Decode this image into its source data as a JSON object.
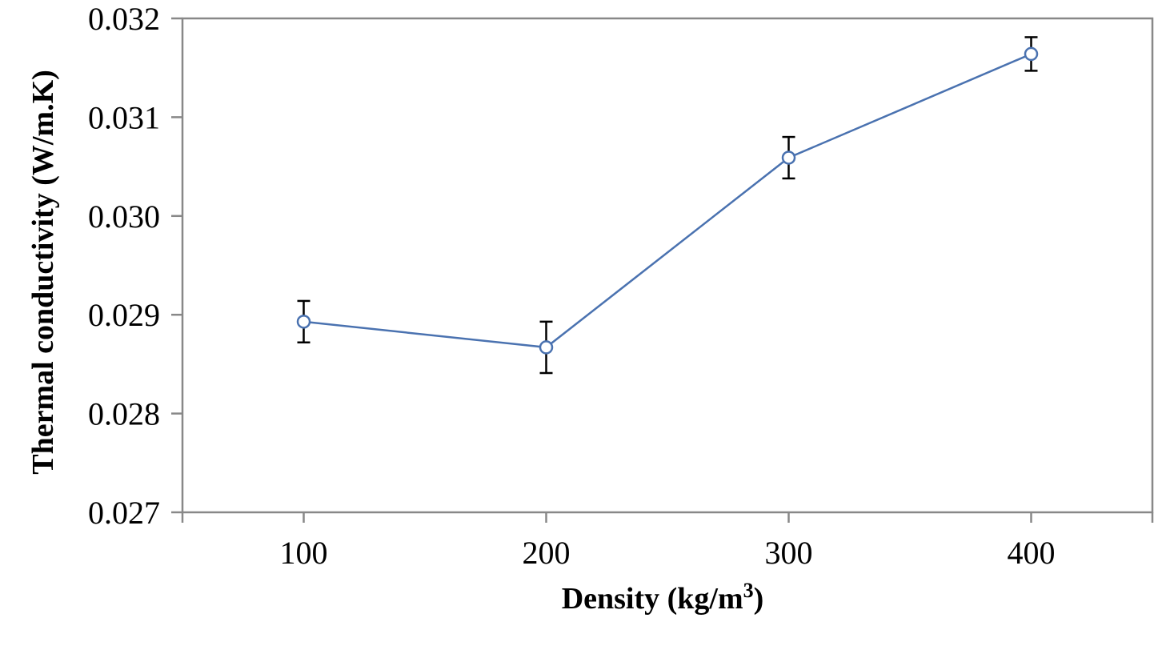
{
  "chart_data": {
    "type": "line",
    "title": "",
    "xlabel": "Density (kg/m",
    "xlabel_superscript": "3",
    "xlabel_suffix": ")",
    "ylabel": "Thermal conductivity (W/m.K)",
    "x": [
      100,
      200,
      300,
      400
    ],
    "xlim": [
      50,
      450
    ],
    "ylim": [
      0.027,
      0.032
    ],
    "x_ticks": [
      100,
      200,
      300,
      400
    ],
    "x_tick_labels": [
      "100",
      "200",
      "300",
      "400"
    ],
    "y_ticks": [
      0.027,
      0.028,
      0.029,
      0.03,
      0.031,
      0.032
    ],
    "y_tick_labels": [
      "0.027",
      "0.028",
      "0.029",
      "0.030",
      "0.031",
      "0.032"
    ],
    "grid": false,
    "series": [
      {
        "values": [
          0.02893,
          0.02867,
          0.03059,
          0.03164
        ],
        "error": [
          0.00021,
          0.00026,
          0.00021,
          0.00017
        ],
        "marker": "open-circle",
        "color": "#4a72b0"
      }
    ],
    "axis_color": "#888888",
    "error_bar_color": "#000000"
  }
}
